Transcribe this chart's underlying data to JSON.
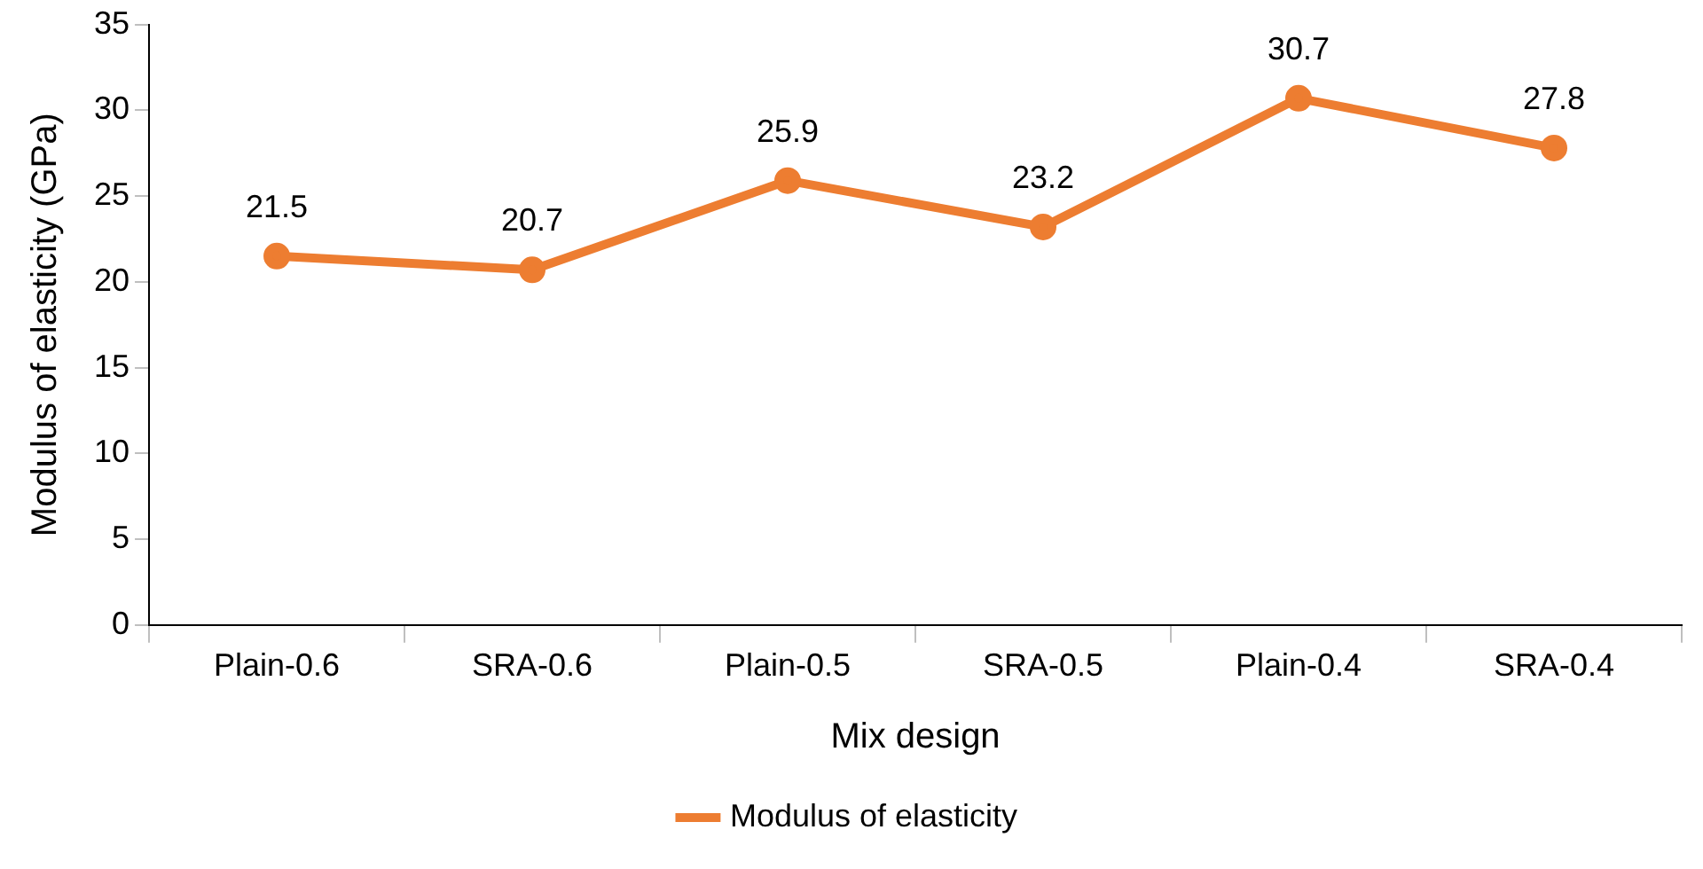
{
  "chart_data": {
    "type": "line",
    "xlabel": "Mix design",
    "ylabel": "Modulus of elasticity (GPa)",
    "categories": [
      "Plain-0.6",
      "SRA-0.6",
      "Plain-0.5",
      "SRA-0.5",
      "Plain-0.4",
      "SRA-0.4"
    ],
    "series": [
      {
        "name": "Modulus of elasticity",
        "color": "#ed7d31",
        "values": [
          21.5,
          20.7,
          25.9,
          23.2,
          30.7,
          27.8
        ]
      }
    ],
    "ylim": [
      0,
      35
    ],
    "yticks": [
      0,
      5,
      10,
      15,
      20,
      25,
      30,
      35
    ],
    "grid": false,
    "legend": "bottom",
    "marker": "circle",
    "line_style": "solid",
    "data_labels": true
  }
}
